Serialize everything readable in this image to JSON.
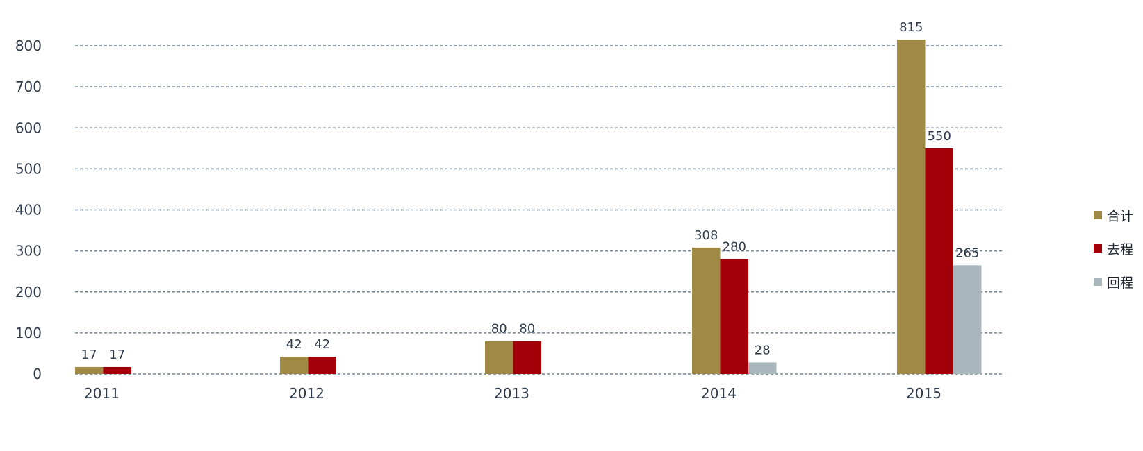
{
  "chart_data": {
    "type": "bar",
    "title": "",
    "xlabel": "",
    "ylabel": "",
    "categories": [
      "2011",
      "2012",
      "2013",
      "2014",
      "2015"
    ],
    "ylim": [
      0,
      800
    ],
    "yticks": [
      0,
      100,
      200,
      300,
      400,
      500,
      600,
      700,
      800
    ],
    "grid": true,
    "legend_position": "right",
    "series": [
      {
        "name": "合计",
        "color": "#a08845",
        "values": [
          17,
          42,
          80,
          308,
          815
        ],
        "labels": [
          "17",
          "42",
          "80",
          "308",
          "815"
        ]
      },
      {
        "name": "去程",
        "color": "#a10008",
        "values": [
          17,
          42,
          80,
          280,
          550
        ],
        "labels": [
          "17",
          "42",
          "80",
          "280",
          "550"
        ]
      },
      {
        "name": "回程",
        "color": "#a9b6bb",
        "values": [
          null,
          null,
          null,
          28,
          265
        ],
        "labels": [
          null,
          null,
          null,
          "28",
          "265"
        ]
      }
    ]
  }
}
